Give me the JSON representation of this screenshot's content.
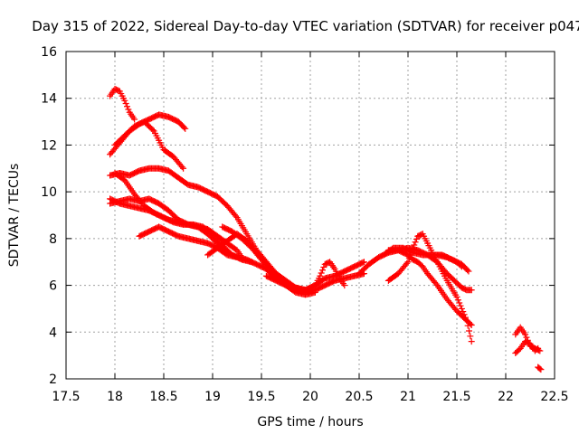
{
  "chart_data": {
    "type": "scatter",
    "title": "Day 315 of 2022, Sidereal Day-to-day VTEC variation (SDTVAR) for receiver p047",
    "xlabel": "GPS time / hours",
    "ylabel": "SDTVAR / TECUs",
    "xlim": [
      17.5,
      22.5
    ],
    "ylim": [
      2,
      16
    ],
    "xticks": [
      "17.5",
      "18",
      "18.5",
      "19",
      "19.5",
      "20",
      "20.5",
      "21",
      "21.5",
      "22",
      "22.5"
    ],
    "yticks": [
      "2",
      "4",
      "6",
      "8",
      "10",
      "12",
      "14",
      "16"
    ],
    "grid": true,
    "marker": "+",
    "color": "#ff0000",
    "series": [
      {
        "name": "s1",
        "x": [
          17.95,
          18.0,
          18.05,
          18.1,
          18.15,
          18.2
        ],
        "y": [
          14.1,
          14.4,
          14.3,
          13.9,
          13.4,
          13.1
        ]
      },
      {
        "name": "s2",
        "x": [
          17.95,
          18.05,
          18.15,
          18.25,
          18.35,
          18.45,
          18.55,
          18.65,
          18.72
        ],
        "y": [
          11.6,
          12.1,
          12.6,
          12.9,
          13.1,
          13.3,
          13.2,
          13.0,
          12.7
        ]
      },
      {
        "name": "s3",
        "x": [
          18.0,
          18.1,
          18.2,
          18.3,
          18.4,
          18.5,
          18.6,
          18.7
        ],
        "y": [
          12.0,
          12.4,
          12.8,
          13.0,
          12.6,
          11.8,
          11.5,
          11.0
        ]
      },
      {
        "name": "s4",
        "x": [
          17.95,
          18.05,
          18.15,
          18.25,
          18.35,
          18.45,
          18.55,
          18.65,
          18.75,
          18.85,
          18.95,
          19.05,
          19.15,
          19.25,
          19.35,
          19.45,
          19.55,
          19.65,
          19.75,
          19.85,
          19.95,
          20.05,
          20.15,
          20.25,
          20.35,
          20.45,
          20.55
        ],
        "y": [
          10.7,
          10.8,
          10.7,
          10.9,
          11.0,
          11.0,
          10.9,
          10.6,
          10.3,
          10.2,
          10.0,
          9.8,
          9.4,
          8.9,
          8.2,
          7.5,
          7.0,
          6.5,
          6.2,
          5.9,
          5.8,
          6.0,
          6.3,
          6.4,
          6.6,
          6.8,
          7.0
        ]
      },
      {
        "name": "s5",
        "x": [
          18.0,
          18.1,
          18.2,
          18.3,
          18.4,
          18.5,
          18.6,
          18.7,
          18.8,
          18.9,
          19.0,
          19.1,
          19.2,
          19.3,
          19.4
        ],
        "y": [
          10.8,
          10.5,
          9.9,
          9.4,
          9.1,
          8.9,
          8.7,
          8.6,
          8.6,
          8.5,
          8.2,
          7.7,
          7.3,
          7.1,
          7.0
        ]
      },
      {
        "name": "s6",
        "x": [
          17.95,
          18.05,
          18.15,
          18.25,
          18.35,
          18.45,
          18.55,
          18.65,
          18.75,
          18.85,
          18.95,
          19.05,
          19.15,
          19.25,
          19.3
        ],
        "y": [
          9.5,
          9.6,
          9.7,
          9.6,
          9.7,
          9.5,
          9.2,
          8.8,
          8.6,
          8.5,
          8.4,
          8.1,
          7.8,
          7.5,
          7.2
        ]
      },
      {
        "name": "s7",
        "x": [
          17.95,
          18.05,
          18.15,
          18.25,
          18.35,
          18.45,
          18.55,
          18.65,
          18.75,
          18.85,
          18.95,
          19.05,
          19.15,
          19.25
        ],
        "y": [
          9.7,
          9.5,
          9.4,
          9.3,
          9.2,
          9.0,
          8.8,
          8.7,
          8.6,
          8.5,
          8.2,
          7.8,
          7.4,
          7.2
        ]
      },
      {
        "name": "s8",
        "x": [
          18.25,
          18.35,
          18.45,
          18.55,
          18.65,
          18.75,
          18.85,
          18.95,
          19.05,
          19.15,
          19.25,
          19.35,
          19.45,
          19.55,
          19.65,
          19.75,
          19.85,
          19.95,
          20.05
        ],
        "y": [
          8.1,
          8.3,
          8.5,
          8.3,
          8.1,
          8.0,
          7.9,
          7.8,
          7.6,
          7.3,
          7.2,
          7.1,
          6.9,
          6.7,
          6.3,
          6.0,
          5.7,
          5.6,
          5.7
        ]
      },
      {
        "name": "s9",
        "x": [
          18.95,
          19.05,
          19.15,
          19.25,
          19.35,
          19.45,
          19.55,
          19.65,
          19.75,
          19.85,
          19.95,
          20.05,
          20.15,
          20.25,
          20.35,
          20.45,
          20.55
        ],
        "y": [
          7.3,
          7.6,
          7.9,
          8.2,
          7.9,
          7.4,
          6.9,
          6.5,
          6.1,
          5.8,
          5.7,
          5.8,
          6.0,
          6.2,
          6.3,
          6.4,
          6.5
        ]
      },
      {
        "name": "s10",
        "x": [
          19.1,
          19.2,
          19.3,
          19.4,
          19.5,
          19.6,
          19.7,
          19.8,
          19.9,
          20.0
        ],
        "y": [
          8.5,
          8.3,
          8.0,
          7.6,
          7.1,
          6.5,
          6.2,
          6.0,
          5.8,
          5.8
        ]
      },
      {
        "name": "s11",
        "x": [
          19.55,
          19.65,
          19.75,
          19.85,
          19.95,
          20.05,
          20.1,
          20.15,
          20.2,
          20.25,
          20.3,
          20.35
        ],
        "y": [
          6.4,
          6.2,
          6.0,
          5.9,
          5.8,
          6.0,
          6.4,
          6.9,
          7.0,
          6.7,
          6.3,
          6.0
        ]
      },
      {
        "name": "s12",
        "x": [
          20.5,
          20.6,
          20.7,
          20.8,
          20.9,
          21.0,
          21.1,
          21.2,
          21.3,
          21.4,
          21.5,
          21.55,
          21.6,
          21.65
        ],
        "y": [
          6.5,
          6.9,
          7.2,
          7.4,
          7.5,
          7.6,
          7.5,
          7.3,
          7.0,
          6.5,
          6.1,
          5.9,
          5.8,
          5.8
        ]
      },
      {
        "name": "s13",
        "x": [
          20.75,
          20.85,
          20.95,
          21.05,
          21.15,
          21.25,
          21.35,
          21.45,
          21.55,
          21.62
        ],
        "y": [
          7.3,
          7.6,
          7.6,
          7.4,
          7.3,
          7.3,
          7.3,
          7.1,
          6.9,
          6.6
        ]
      },
      {
        "name": "s14",
        "x": [
          20.8,
          20.9,
          21.0,
          21.05,
          21.1,
          21.15,
          21.2,
          21.3,
          21.4,
          21.5,
          21.6,
          21.65
        ],
        "y": [
          7.5,
          7.5,
          7.3,
          7.1,
          7.0,
          6.8,
          6.5,
          6.0,
          5.4,
          4.9,
          4.5,
          4.3
        ]
      },
      {
        "name": "s15",
        "x": [
          20.8,
          20.9,
          21.0,
          21.05,
          21.1,
          21.15,
          21.2,
          21.3,
          21.4,
          21.5,
          21.55,
          21.6,
          21.65
        ],
        "y": [
          6.2,
          6.5,
          7.0,
          7.6,
          8.1,
          8.2,
          7.8,
          7.0,
          6.2,
          5.5,
          5.0,
          4.5,
          3.6
        ]
      },
      {
        "name": "s16",
        "x": [
          21.2,
          21.3,
          21.4,
          21.5,
          21.55
        ],
        "y": [
          7.3,
          7.3,
          7.2,
          7.0,
          6.8
        ]
      },
      {
        "name": "s17",
        "x": [
          22.1,
          22.15,
          22.2,
          22.25,
          22.3,
          22.35
        ],
        "y": [
          3.9,
          4.2,
          3.9,
          3.4,
          3.3,
          3.2
        ]
      },
      {
        "name": "s18",
        "x": [
          22.1,
          22.15,
          22.2,
          22.25,
          22.3,
          22.33
        ],
        "y": [
          3.1,
          3.3,
          3.6,
          3.5,
          3.2,
          3.3
        ]
      },
      {
        "name": "s19",
        "x": [
          22.33,
          22.36
        ],
        "y": [
          2.5,
          2.4
        ]
      }
    ]
  }
}
